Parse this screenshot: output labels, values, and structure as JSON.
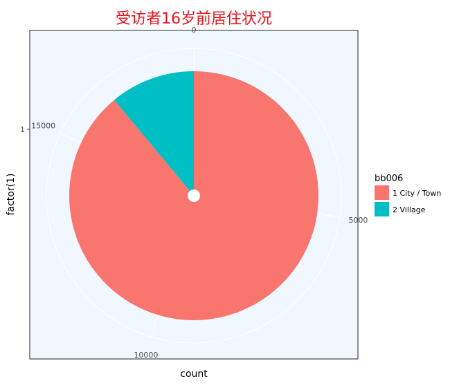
{
  "chart_data": {
    "type": "pie",
    "title": "受访者16岁前居住状况",
    "xlabel": "count",
    "ylabel": "factor(1)",
    "y_tick": "1",
    "radial_ticks": [
      {
        "value": 0,
        "label": "0"
      },
      {
        "value": 5000,
        "label": "5000"
      },
      {
        "value": 10000,
        "label": "10000"
      },
      {
        "value": 15000,
        "label": "15000"
      }
    ],
    "total": 18300,
    "legend": {
      "title": "bb006",
      "placement": "right"
    },
    "series": [
      {
        "name": "1 City / Town",
        "value": 16280,
        "color": "#F8766D"
      },
      {
        "name": "2 Village",
        "value": 2020,
        "color": "#00BFC4"
      }
    ],
    "colors": {
      "panel": "#F0F7FF",
      "grid": "#FFFFFF",
      "title": "#E8141B",
      "axis_text": "#4D4D4D"
    },
    "grid": true
  }
}
